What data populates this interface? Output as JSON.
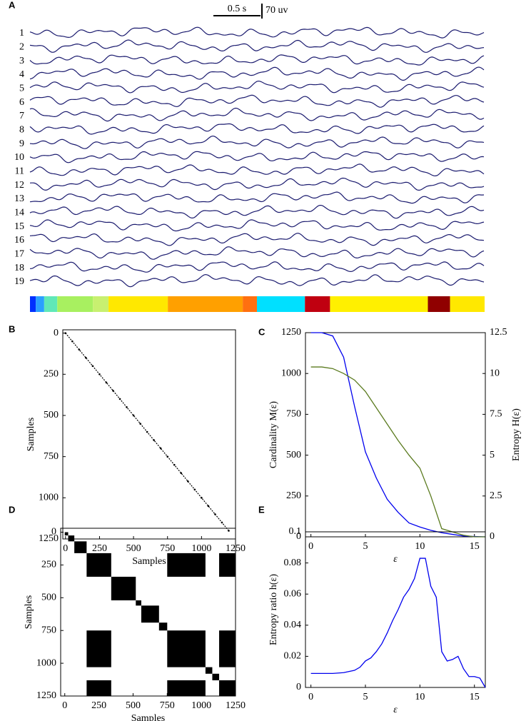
{
  "chart_data": [
    {
      "type": "traces",
      "label": "A",
      "channels": [
        "1",
        "2",
        "3",
        "4",
        "5",
        "6",
        "7",
        "8",
        "9",
        "10",
        "11",
        "12",
        "13",
        "14",
        "15",
        "16",
        "17",
        "18",
        "19"
      ],
      "scale_bar": {
        "time": "0.5 s",
        "amplitude": "70 uv"
      },
      "xlim": [
        0,
        1250
      ],
      "segments": {
        "boundaries": [
          0,
          16,
          39,
          75,
          173,
          216,
          379,
          585,
          624,
          756,
          825,
          1094,
          1155,
          1250
        ],
        "colors": [
          "#0030ff",
          "#2aa0ff",
          "#60e8b8",
          "#a8f060",
          "#c8f070",
          "#ffe800",
          "#ffa000",
          "#ff7010",
          "#00e0ff",
          "#c00010",
          "#fff000",
          "#900000",
          "#ffe800"
        ]
      },
      "trace_color": "#1a1a6e"
    },
    {
      "type": "scatter",
      "label": "B",
      "xlabel": "Samples",
      "ylabel": "Samples",
      "x": [
        0,
        50,
        100,
        150,
        200,
        250,
        300,
        350,
        400,
        450,
        500,
        550,
        600,
        650,
        700,
        750,
        800,
        850,
        900,
        950,
        1000,
        1050,
        1100,
        1150,
        1200
      ],
      "y": [
        0,
        50,
        100,
        150,
        200,
        250,
        300,
        350,
        400,
        450,
        500,
        550,
        600,
        650,
        700,
        750,
        800,
        850,
        900,
        950,
        1000,
        1050,
        1100,
        1150,
        1200
      ],
      "xlim": [
        -20,
        1250
      ],
      "ylim": [
        -20,
        1250
      ],
      "y_inverted": true,
      "xticks": [
        0,
        250,
        500,
        750,
        1000,
        1250
      ],
      "yticks": [
        0,
        250,
        500,
        750,
        1000,
        1250
      ],
      "color": "#000000"
    },
    {
      "type": "dual_line",
      "label": "C",
      "xlabel": "ε",
      "ylabel": "Cardinality M(ε)",
      "y2label": "Entropy H(ε)",
      "x": [
        0,
        1,
        2,
        3,
        4,
        5,
        6,
        7,
        8,
        9,
        10,
        11,
        12,
        13,
        14,
        15,
        16
      ],
      "series": [
        {
          "color": "#0000ee",
          "values": [
            1250,
            1250,
            1230,
            1100,
            800,
            520,
            360,
            230,
            150,
            85,
            60,
            40,
            25,
            15,
            5,
            2,
            0
          ]
        },
        {
          "color": "#5a7a1e",
          "axis": "y2",
          "values": [
            10.4,
            10.4,
            10.3,
            10,
            9.6,
            8.9,
            7.9,
            6.9,
            5.9,
            5,
            4.2,
            2.5,
            0.5,
            0.3,
            0.1,
            0,
            0
          ]
        }
      ],
      "xlim": [
        -0.5,
        16
      ],
      "ylim": [
        0,
        1250
      ],
      "y2lim": [
        0,
        12.5
      ],
      "xticks": [
        0,
        5,
        10,
        15
      ],
      "yticks": [
        0,
        250,
        500,
        750,
        1000,
        1250
      ],
      "y2ticks": [
        0,
        2.5,
        5,
        7.5,
        10,
        12.5
      ]
    },
    {
      "type": "matrix",
      "label": "D",
      "xlabel": "Samples",
      "ylabel": "Samples",
      "xlim": [
        -30,
        1250
      ],
      "ylim": [
        -30,
        1250
      ],
      "y_inverted": true,
      "color": "#000000",
      "xticks": [
        0,
        250,
        500,
        750,
        1000,
        1250
      ],
      "yticks": [
        0,
        250,
        500,
        750,
        1000,
        1250
      ],
      "blocks": [
        {
          "x": [
            0,
            25
          ],
          "y": [
            0,
            25
          ]
        },
        {
          "x": [
            25,
            70
          ],
          "y": [
            25,
            70
          ]
        },
        {
          "x": [
            70,
            160
          ],
          "y": [
            70,
            160
          ]
        },
        {
          "x": [
            160,
            340
          ],
          "y": [
            160,
            340
          ]
        },
        {
          "x": [
            340,
            520
          ],
          "y": [
            340,
            520
          ]
        },
        {
          "x": [
            520,
            560
          ],
          "y": [
            520,
            560
          ]
        },
        {
          "x": [
            560,
            690
          ],
          "y": [
            560,
            690
          ]
        },
        {
          "x": [
            690,
            750
          ],
          "y": [
            690,
            750
          ]
        },
        {
          "x": [
            750,
            1030
          ],
          "y": [
            750,
            1030
          ]
        },
        {
          "x": [
            1030,
            1080
          ],
          "y": [
            1030,
            1080
          ]
        },
        {
          "x": [
            1080,
            1130
          ],
          "y": [
            1080,
            1130
          ]
        },
        {
          "x": [
            1130,
            1250
          ],
          "y": [
            1130,
            1250
          ]
        },
        {
          "x": [
            160,
            340
          ],
          "y": [
            750,
            1030
          ]
        },
        {
          "x": [
            750,
            1030
          ],
          "y": [
            160,
            340
          ]
        },
        {
          "x": [
            1130,
            1250
          ],
          "y": [
            160,
            340
          ]
        },
        {
          "x": [
            160,
            340
          ],
          "y": [
            1130,
            1250
          ]
        },
        {
          "x": [
            1130,
            1250
          ],
          "y": [
            750,
            1030
          ]
        },
        {
          "x": [
            750,
            1030
          ],
          "y": [
            1130,
            1250
          ]
        }
      ]
    },
    {
      "type": "line",
      "label": "E",
      "xlabel": "ε",
      "ylabel": "Entropy ratio h(ε)",
      "color": "#0000ee",
      "x": [
        0,
        1,
        2,
        3,
        4,
        4.5,
        5,
        5.5,
        6,
        6.5,
        7,
        7.5,
        8,
        8.5,
        9,
        9.5,
        10,
        10.5,
        11,
        11.5,
        12,
        12.5,
        13,
        13.5,
        14,
        14.5,
        15,
        15.5,
        16
      ],
      "values": [
        0.009,
        0.009,
        0.009,
        0.0095,
        0.011,
        0.013,
        0.017,
        0.019,
        0.023,
        0.028,
        0.035,
        0.043,
        0.05,
        0.058,
        0.063,
        0.07,
        0.083,
        0.083,
        0.065,
        0.058,
        0.023,
        0.017,
        0.018,
        0.02,
        0.012,
        0.007,
        0.007,
        0.006,
        0
      ],
      "xlim": [
        -0.5,
        16
      ],
      "ylim": [
        0,
        0.1
      ],
      "xticks": [
        0,
        5,
        10,
        15
      ],
      "yticks": [
        0,
        0.02,
        0.04,
        0.06,
        0.08,
        0.1
      ]
    }
  ]
}
